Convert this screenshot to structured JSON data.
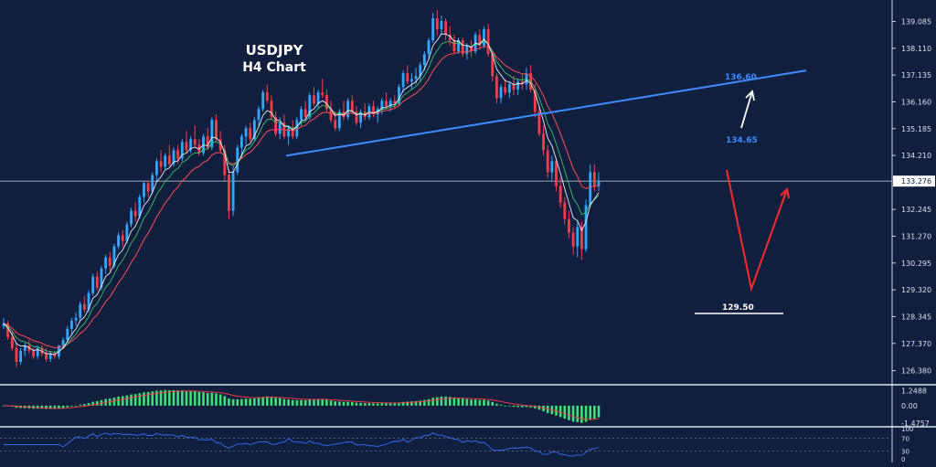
{
  "chart_data": {
    "type": "candlestick",
    "title": "USDJPY",
    "subtitle": "H4 Chart",
    "colors": {
      "background": "#0f1f3d",
      "up_candle": "#35a6ff",
      "down_candle": "#ff3b4a",
      "trendline": "#3d8cff",
      "ma_white": "#e9eef8",
      "ma_red": "#ff4b55",
      "ma_green": "#40d06a",
      "arrow_up": "#ffffff",
      "arrow_zigzag": "#ff2a2a",
      "macd_hist": "#3fe07a",
      "macd_signal": "#ff3b4a",
      "rsi_line": "#3a6cff"
    },
    "main_panel": {
      "ylim": [
        125.9,
        139.6
      ],
      "y_ticks": [
        "139.085",
        "138.110",
        "137.135",
        "136.160",
        "135.185",
        "134.210",
        "133.276",
        "132.245",
        "131.270",
        "130.295",
        "129.320",
        "128.345",
        "127.370",
        "126.380"
      ],
      "y_tick_values": [
        139.085,
        138.11,
        137.135,
        136.16,
        135.185,
        134.21,
        133.276,
        132.245,
        131.27,
        130.295,
        129.32,
        128.345,
        127.37,
        126.38
      ],
      "current_price": "133.276",
      "current_price_value": 133.276,
      "candles": [
        [
          128.0,
          128.3,
          127.9,
          128.1
        ],
        [
          128.1,
          128.2,
          127.5,
          127.6
        ],
        [
          127.6,
          127.8,
          127.1,
          127.2
        ],
        [
          127.2,
          127.4,
          126.5,
          126.7
        ],
        [
          126.7,
          127.2,
          126.6,
          127.1
        ],
        [
          127.1,
          127.4,
          126.9,
          127.3
        ],
        [
          127.3,
          127.5,
          127.0,
          127.1
        ],
        [
          127.1,
          127.2,
          126.8,
          126.9
        ],
        [
          126.9,
          127.3,
          126.8,
          127.2
        ],
        [
          127.2,
          127.3,
          126.9,
          127.0
        ],
        [
          127.0,
          127.2,
          126.7,
          126.8
        ],
        [
          126.8,
          127.1,
          126.7,
          127.0
        ],
        [
          127.0,
          127.1,
          126.8,
          126.9
        ],
        [
          126.9,
          127.3,
          126.8,
          127.3
        ],
        [
          127.3,
          127.6,
          127.2,
          127.5
        ],
        [
          127.5,
          128.0,
          127.4,
          127.9
        ],
        [
          127.9,
          128.3,
          127.7,
          128.2
        ],
        [
          128.2,
          128.5,
          128.0,
          128.3
        ],
        [
          128.3,
          128.9,
          128.2,
          128.8
        ],
        [
          128.8,
          129.1,
          128.5,
          128.6
        ],
        [
          128.6,
          129.3,
          128.5,
          129.2
        ],
        [
          129.2,
          129.9,
          129.1,
          129.8
        ],
        [
          129.8,
          130.0,
          129.3,
          129.4
        ],
        [
          129.4,
          130.2,
          129.3,
          130.1
        ],
        [
          130.1,
          130.6,
          129.9,
          130.5
        ],
        [
          130.5,
          130.7,
          130.0,
          130.2
        ],
        [
          130.2,
          131.0,
          130.1,
          130.9
        ],
        [
          130.9,
          131.4,
          130.8,
          131.3
        ],
        [
          131.3,
          131.5,
          130.9,
          131.1
        ],
        [
          131.1,
          131.8,
          131.0,
          131.7
        ],
        [
          131.7,
          132.3,
          131.6,
          132.2
        ],
        [
          132.2,
          132.5,
          131.8,
          132.0
        ],
        [
          132.0,
          132.8,
          131.9,
          132.7
        ],
        [
          132.7,
          133.3,
          132.5,
          133.2
        ],
        [
          133.2,
          133.3,
          132.7,
          132.9
        ],
        [
          132.9,
          133.6,
          132.8,
          133.5
        ],
        [
          133.5,
          134.1,
          133.3,
          134.0
        ],
        [
          134.0,
          134.4,
          133.6,
          133.8
        ],
        [
          133.8,
          134.3,
          133.7,
          134.2
        ],
        [
          134.2,
          134.6,
          133.8,
          133.9
        ],
        [
          133.9,
          134.5,
          133.8,
          134.4
        ],
        [
          134.4,
          134.6,
          133.9,
          134.1
        ],
        [
          134.1,
          134.8,
          134.0,
          134.7
        ],
        [
          134.7,
          135.1,
          134.3,
          134.4
        ],
        [
          134.4,
          134.9,
          134.3,
          134.8
        ],
        [
          134.8,
          135.3,
          134.5,
          134.6
        ],
        [
          134.6,
          134.8,
          134.2,
          134.3
        ],
        [
          134.3,
          135.0,
          134.2,
          134.9
        ],
        [
          134.9,
          135.2,
          134.4,
          134.5
        ],
        [
          134.5,
          135.6,
          134.4,
          135.5
        ],
        [
          135.5,
          135.7,
          134.7,
          134.8
        ],
        [
          134.8,
          135.1,
          134.3,
          134.4
        ],
        [
          134.4,
          134.6,
          133.3,
          133.5
        ],
        [
          133.5,
          133.7,
          131.9,
          132.2
        ],
        [
          132.2,
          133.8,
          132.0,
          133.6
        ],
        [
          133.6,
          134.6,
          133.5,
          134.5
        ],
        [
          134.5,
          135.0,
          134.1,
          134.9
        ],
        [
          134.9,
          135.3,
          134.6,
          135.2
        ],
        [
          135.2,
          135.4,
          134.7,
          134.8
        ],
        [
          134.8,
          135.6,
          134.7,
          135.5
        ],
        [
          135.5,
          136.0,
          135.3,
          135.9
        ],
        [
          135.9,
          136.6,
          135.8,
          136.5
        ],
        [
          136.5,
          136.8,
          136.1,
          136.2
        ],
        [
          136.2,
          136.4,
          135.5,
          135.6
        ],
        [
          135.6,
          135.8,
          134.9,
          135.0
        ],
        [
          135.0,
          135.6,
          134.8,
          135.4
        ],
        [
          135.4,
          135.7,
          134.8,
          134.9
        ],
        [
          134.9,
          135.3,
          134.6,
          135.2
        ],
        [
          135.2,
          135.5,
          134.8,
          134.9
        ],
        [
          134.9,
          135.6,
          134.8,
          135.5
        ],
        [
          135.5,
          136.0,
          135.3,
          135.9
        ],
        [
          135.9,
          136.2,
          135.5,
          135.6
        ],
        [
          135.6,
          136.5,
          135.5,
          136.4
        ],
        [
          136.4,
          136.7,
          136.0,
          136.1
        ],
        [
          136.1,
          136.6,
          135.9,
          136.5
        ],
        [
          136.5,
          137.0,
          136.3,
          136.4
        ],
        [
          136.4,
          136.6,
          135.8,
          135.9
        ],
        [
          135.9,
          136.2,
          135.4,
          135.5
        ],
        [
          135.5,
          135.8,
          135.1,
          135.2
        ],
        [
          135.2,
          135.9,
          135.1,
          135.8
        ],
        [
          135.8,
          136.2,
          135.5,
          135.6
        ],
        [
          135.6,
          136.3,
          135.5,
          136.2
        ],
        [
          136.2,
          136.4,
          135.7,
          135.8
        ],
        [
          135.8,
          136.0,
          135.3,
          135.4
        ],
        [
          135.4,
          135.9,
          135.2,
          135.8
        ],
        [
          135.8,
          136.1,
          135.5,
          135.6
        ],
        [
          135.6,
          136.1,
          135.5,
          136.0
        ],
        [
          136.0,
          136.2,
          135.6,
          135.7
        ],
        [
          135.7,
          136.0,
          135.4,
          135.9
        ],
        [
          135.9,
          136.3,
          135.7,
          136.2
        ],
        [
          136.2,
          136.5,
          135.9,
          136.0
        ],
        [
          136.0,
          136.3,
          135.8,
          136.2
        ],
        [
          136.2,
          136.4,
          135.9,
          136.1
        ],
        [
          136.1,
          136.8,
          136.0,
          136.7
        ],
        [
          136.7,
          137.3,
          136.5,
          137.2
        ],
        [
          137.2,
          137.5,
          136.8,
          136.9
        ],
        [
          136.9,
          137.2,
          136.6,
          137.0
        ],
        [
          137.0,
          137.4,
          136.8,
          137.1
        ],
        [
          137.1,
          137.6,
          136.9,
          137.5
        ],
        [
          137.5,
          138.0,
          137.3,
          137.9
        ],
        [
          137.9,
          138.5,
          137.7,
          138.4
        ],
        [
          138.4,
          139.4,
          138.3,
          139.2
        ],
        [
          139.2,
          139.5,
          138.6,
          138.8
        ],
        [
          138.8,
          139.3,
          138.6,
          139.1
        ],
        [
          139.1,
          139.2,
          138.4,
          138.6
        ],
        [
          138.6,
          138.9,
          138.2,
          138.4
        ],
        [
          138.4,
          138.6,
          137.9,
          138.0
        ],
        [
          138.0,
          138.5,
          137.9,
          138.4
        ],
        [
          138.4,
          138.5,
          137.8,
          137.9
        ],
        [
          137.9,
          138.3,
          137.7,
          138.2
        ],
        [
          138.2,
          138.4,
          137.8,
          138.0
        ],
        [
          138.0,
          138.7,
          137.9,
          138.6
        ],
        [
          138.6,
          138.8,
          138.1,
          138.2
        ],
        [
          138.2,
          138.9,
          138.1,
          138.8
        ],
        [
          138.8,
          139.0,
          137.8,
          137.9
        ],
        [
          137.9,
          138.0,
          136.9,
          137.1
        ],
        [
          137.1,
          137.2,
          136.1,
          136.3
        ],
        [
          136.3,
          136.8,
          136.1,
          136.7
        ],
        [
          136.7,
          137.0,
          136.4,
          136.5
        ],
        [
          136.5,
          136.9,
          136.3,
          136.8
        ],
        [
          136.8,
          137.1,
          136.4,
          136.6
        ],
        [
          136.6,
          137.0,
          136.4,
          136.9
        ],
        [
          136.9,
          137.2,
          136.6,
          136.8
        ],
        [
          136.8,
          137.4,
          136.6,
          137.2
        ],
        [
          137.2,
          137.5,
          136.5,
          136.6
        ],
        [
          136.6,
          136.8,
          135.6,
          135.8
        ],
        [
          135.8,
          136.0,
          134.9,
          135.0
        ],
        [
          135.0,
          135.3,
          134.2,
          134.4
        ],
        [
          134.4,
          134.6,
          133.4,
          133.6
        ],
        [
          133.6,
          134.2,
          133.3,
          134.0
        ],
        [
          134.0,
          134.1,
          132.9,
          133.1
        ],
        [
          133.1,
          133.4,
          132.3,
          132.5
        ],
        [
          132.5,
          132.7,
          131.7,
          131.9
        ],
        [
          131.9,
          132.2,
          131.2,
          131.4
        ],
        [
          131.4,
          131.6,
          130.6,
          130.9
        ],
        [
          130.9,
          131.8,
          130.5,
          131.6
        ],
        [
          131.6,
          131.8,
          130.4,
          130.8
        ],
        [
          130.8,
          132.6,
          130.7,
          132.4
        ],
        [
          132.4,
          133.9,
          132.3,
          133.6
        ],
        [
          133.6,
          133.9,
          132.9,
          133.1
        ],
        [
          133.1,
          133.6,
          132.9,
          133.3
        ]
      ]
    },
    "annotations": [
      {
        "type": "text",
        "text": "136.60"
      },
      {
        "type": "text",
        "text": "134.65"
      },
      {
        "type": "text",
        "text": "129.50"
      }
    ],
    "trendline": {
      "from_price": 134.2,
      "to_price": 137.3
    },
    "macd_panel": {
      "y_ticks": [
        "1.2488",
        "0.00",
        "-1.4757"
      ],
      "ylim": [
        -1.7,
        1.6
      ]
    },
    "rsi_panel": {
      "y_ticks": [
        "100",
        "70",
        "30",
        "0"
      ],
      "ylim": [
        0,
        100
      ]
    }
  }
}
